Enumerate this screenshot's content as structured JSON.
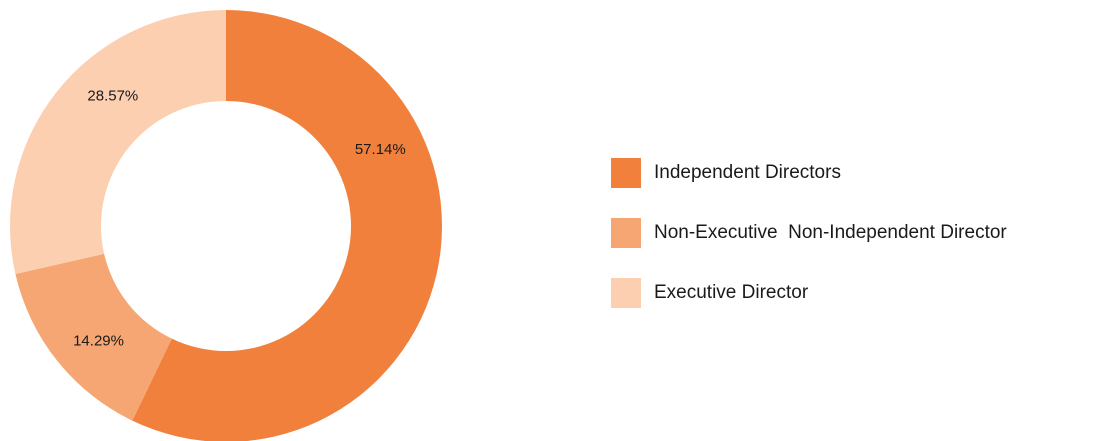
{
  "chart_data": {
    "type": "donut",
    "categories": [
      "Independent Directors",
      "Non-Executive  Non-Independent Director",
      "Executive Director"
    ],
    "values": [
      57.14,
      14.29,
      28.57
    ],
    "value_labels": [
      "57.14%",
      "14.29%",
      "28.57%"
    ],
    "colors": [
      "#f0803c",
      "#f5a673",
      "#fbcfb0"
    ],
    "legend": "right"
  }
}
